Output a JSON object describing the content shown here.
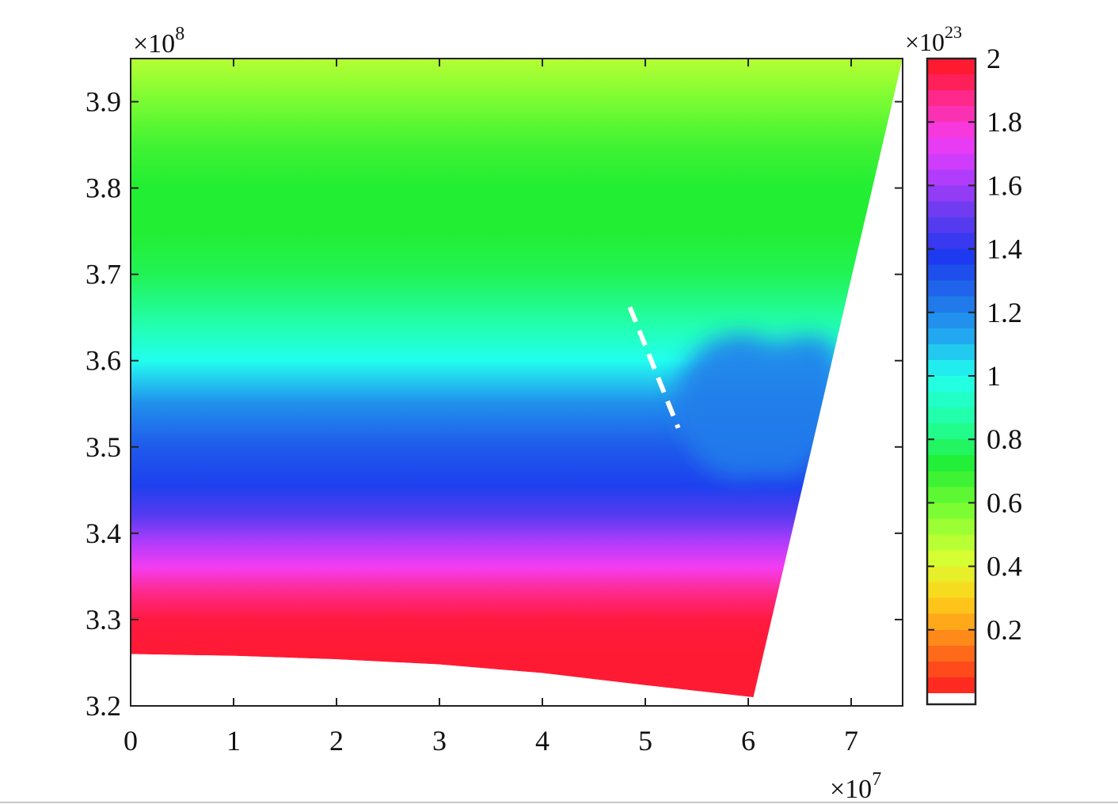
{
  "chart_data": {
    "type": "heatmap",
    "title": "",
    "xlabel": "",
    "ylabel": "",
    "x_multiplier": {
      "base": "×10",
      "exp": "7"
    },
    "y_multiplier": {
      "base": "×10",
      "exp": "8"
    },
    "xlim": [
      0,
      7.5
    ],
    "ylim": [
      3.2,
      3.95
    ],
    "x_ticks": [
      0,
      1,
      2,
      3,
      4,
      5,
      6,
      7
    ],
    "x_tick_labels": [
      "0",
      "1",
      "2",
      "3",
      "4",
      "5",
      "6",
      "7"
    ],
    "y_ticks": [
      3.2,
      3.3,
      3.4,
      3.5,
      3.6,
      3.7,
      3.8,
      3.9
    ],
    "y_tick_labels": [
      "3.2",
      "3.3",
      "3.4",
      "3.5",
      "3.6",
      "3.7",
      "3.8",
      "3.9"
    ],
    "domain_boundary": {
      "bottom_edge": [
        [
          0,
          3.26
        ],
        [
          1,
          3.258
        ],
        [
          2,
          3.254
        ],
        [
          3,
          3.248
        ],
        [
          4,
          3.238
        ],
        [
          5,
          3.224
        ],
        [
          6.05,
          3.21
        ]
      ],
      "right_edge": [
        [
          6.05,
          3.21
        ],
        [
          7.5,
          3.95
        ]
      ],
      "top_edge": [
        [
          0,
          3.95
        ],
        [
          7.5,
          3.95
        ]
      ]
    },
    "field_profile": {
      "y": [
        3.26,
        3.3,
        3.33,
        3.36,
        3.39,
        3.42,
        3.455,
        3.5,
        3.55,
        3.585,
        3.6,
        3.64,
        3.7,
        3.75,
        3.8,
        3.85,
        3.9,
        3.95
      ],
      "value": [
        1.97,
        1.95,
        1.88,
        1.75,
        1.62,
        1.48,
        1.36,
        1.3,
        1.18,
        1.05,
        1.0,
        0.88,
        0.76,
        0.72,
        0.72,
        0.67,
        0.58,
        0.48
      ]
    },
    "anomaly_region": {
      "x_range": [
        5.2,
        6.9
      ],
      "y_range": [
        3.46,
        3.64
      ],
      "value": 1.22
    },
    "dashed_line": {
      "points": [
        [
          4.85,
          3.662
        ],
        [
          5.32,
          3.522
        ]
      ],
      "color": "#ffffff"
    },
    "colorbar": {
      "range": [
        0,
        2
      ],
      "ticks": [
        0.2,
        0.4,
        0.6,
        0.8,
        1,
        1.2,
        1.4,
        1.6,
        1.8,
        2
      ],
      "tick_labels": [
        "0.2",
        "0.4",
        "0.6",
        "0.8",
        "1",
        "1.2",
        "1.4",
        "1.6",
        "1.8",
        "2"
      ],
      "multiplier": {
        "base": "×10",
        "exp": "23"
      },
      "colormap": "hsv",
      "color_stops": [
        {
          "v": 0.0,
          "color": "#ff1a22"
        },
        {
          "v": 0.1,
          "color": "#ff5a1a"
        },
        {
          "v": 0.2,
          "color": "#ff9a1a"
        },
        {
          "v": 0.3,
          "color": "#ffd21a"
        },
        {
          "v": 0.42,
          "color": "#d9ff33"
        },
        {
          "v": 0.55,
          "color": "#8cff33"
        },
        {
          "v": 0.72,
          "color": "#22ee33"
        },
        {
          "v": 0.85,
          "color": "#22ffa0"
        },
        {
          "v": 1.0,
          "color": "#22ffee"
        },
        {
          "v": 1.12,
          "color": "#22aaf0"
        },
        {
          "v": 1.25,
          "color": "#1f6fe8"
        },
        {
          "v": 1.38,
          "color": "#1e38f0"
        },
        {
          "v": 1.52,
          "color": "#6e3cf0"
        },
        {
          "v": 1.65,
          "color": "#c23cff"
        },
        {
          "v": 1.75,
          "color": "#f43cf0"
        },
        {
          "v": 1.87,
          "color": "#ff2a90"
        },
        {
          "v": 1.95,
          "color": "#ff1a40"
        },
        {
          "v": 2.0,
          "color": "#ff1a22"
        }
      ]
    }
  }
}
